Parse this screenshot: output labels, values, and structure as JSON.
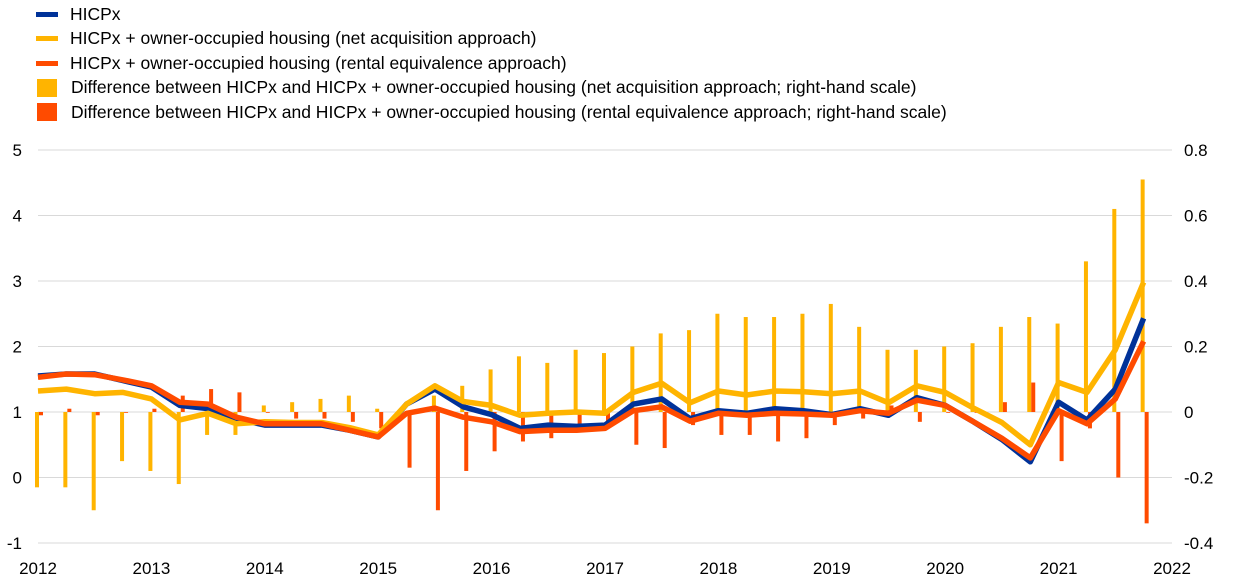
{
  "chart_data": {
    "type": "line+bar",
    "title": "",
    "legend": [
      {
        "label": "HICPx",
        "kind": "line",
        "color": "#003299"
      },
      {
        "label": "HICPx + owner-occupied housing (net acquisition approach)",
        "kind": "line",
        "color": "#FFB400"
      },
      {
        "label": "HICPx + owner-occupied housing (rental equivalence approach)",
        "kind": "line",
        "color": "#FF4B00"
      },
      {
        "label": "Difference between HICPx and HICPx + owner-occupied housing (net acquisition approach; right-hand scale)",
        "kind": "bar",
        "color": "#FFB400"
      },
      {
        "label": "Difference between HICPx and HICPx + owner-occupied housing (rental equivalence approach; right-hand scale)",
        "kind": "bar",
        "color": "#FF4B00"
      }
    ],
    "x_ticks": [
      "2012",
      "2013",
      "2014",
      "2015",
      "2016",
      "2017",
      "2018",
      "2019",
      "2020",
      "2021",
      "2022"
    ],
    "y_left": {
      "ylim": [
        -1,
        5
      ],
      "ticks": [
        "-1",
        "0",
        "1",
        "2",
        "3",
        "4",
        "5"
      ]
    },
    "y_right": {
      "ylim": [
        -0.4,
        0.8
      ],
      "ticks": [
        "-0.4",
        "-0.2",
        "0",
        "0.2",
        "0.4",
        "0.6",
        "0.8"
      ]
    },
    "grid": "horizontal",
    "x": [
      2012.0,
      2012.25,
      2012.5,
      2012.75,
      2013.0,
      2013.25,
      2013.5,
      2013.75,
      2014.0,
      2014.25,
      2014.5,
      2014.75,
      2015.0,
      2015.25,
      2015.5,
      2015.75,
      2016.0,
      2016.25,
      2016.5,
      2016.75,
      2017.0,
      2017.25,
      2017.5,
      2017.75,
      2018.0,
      2018.25,
      2018.5,
      2018.75,
      2019.0,
      2019.25,
      2019.5,
      2019.75,
      2020.0,
      2020.25,
      2020.5,
      2020.75,
      2021.0,
      2021.25,
      2021.5,
      2021.75
    ],
    "lines": [
      {
        "name": "HICPx",
        "color": "#003299",
        "values": [
          1.55,
          1.58,
          1.58,
          1.48,
          1.38,
          1.1,
          1.05,
          0.9,
          0.8,
          0.8,
          0.8,
          0.72,
          0.62,
          1.12,
          1.35,
          1.08,
          0.96,
          0.75,
          0.8,
          0.78,
          0.8,
          1.12,
          1.2,
          0.9,
          1.02,
          0.98,
          1.05,
          1.02,
          0.96,
          1.05,
          0.95,
          1.22,
          1.1,
          0.85,
          0.58,
          0.24,
          1.15,
          0.88,
          1.35,
          2.43
        ]
      },
      {
        "name": "HICPx + owner-occupied housing (net acquisition approach)",
        "color": "#FFB400",
        "values": [
          1.32,
          1.35,
          1.28,
          1.3,
          1.2,
          0.88,
          0.98,
          0.82,
          0.85,
          0.84,
          0.84,
          0.76,
          0.65,
          1.12,
          1.4,
          1.16,
          1.1,
          0.95,
          0.98,
          1.0,
          0.98,
          1.3,
          1.44,
          1.14,
          1.32,
          1.26,
          1.32,
          1.31,
          1.28,
          1.32,
          1.14,
          1.4,
          1.3,
          1.06,
          0.84,
          0.5,
          1.45,
          1.3,
          1.95,
          2.98
        ]
      },
      {
        "name": "HICPx + owner-occupied housing (rental equivalence approach)",
        "color": "#FF4B00",
        "values": [
          1.53,
          1.58,
          1.57,
          1.49,
          1.4,
          1.15,
          1.12,
          0.92,
          0.82,
          0.82,
          0.82,
          0.72,
          0.62,
          0.98,
          1.06,
          0.92,
          0.85,
          0.7,
          0.72,
          0.72,
          0.75,
          1.02,
          1.08,
          0.86,
          0.98,
          0.95,
          0.98,
          0.97,
          0.95,
          1.02,
          0.98,
          1.18,
          1.1,
          0.85,
          0.6,
          0.3,
          1.02,
          0.82,
          1.2,
          2.08
        ]
      }
    ],
    "bars": [
      {
        "name": "Difference between HICPx and HICPx + owner-occupied housing (net acquisition approach; right-hand scale)",
        "color": "#FFB400",
        "values": [
          -0.23,
          -0.23,
          -0.3,
          -0.15,
          -0.18,
          -0.22,
          -0.07,
          -0.07,
          0.02,
          0.03,
          0.04,
          0.05,
          0.01,
          0.0,
          0.05,
          0.08,
          0.13,
          0.17,
          0.15,
          0.19,
          0.18,
          0.2,
          0.24,
          0.25,
          0.3,
          0.29,
          0.29,
          0.3,
          0.33,
          0.26,
          0.19,
          0.19,
          0.2,
          0.21,
          0.26,
          0.29,
          0.27,
          0.46,
          0.62,
          0.71
        ]
      },
      {
        "name": "Difference between HICPx and HICPx + owner-occupied housing (rental equivalence approach; right-hand scale)",
        "color": "#FF4B00",
        "values": [
          -0.01,
          0.01,
          -0.01,
          0.0,
          0.01,
          0.05,
          0.07,
          0.06,
          0.0,
          -0.02,
          -0.02,
          -0.03,
          -0.05,
          -0.17,
          -0.3,
          -0.18,
          -0.12,
          -0.09,
          -0.08,
          -0.05,
          -0.05,
          -0.1,
          -0.11,
          -0.04,
          -0.07,
          -0.07,
          -0.09,
          -0.08,
          -0.04,
          -0.02,
          0.02,
          -0.03,
          0.0,
          0.0,
          0.03,
          0.09,
          -0.15,
          -0.05,
          -0.2,
          -0.34
        ]
      }
    ]
  }
}
